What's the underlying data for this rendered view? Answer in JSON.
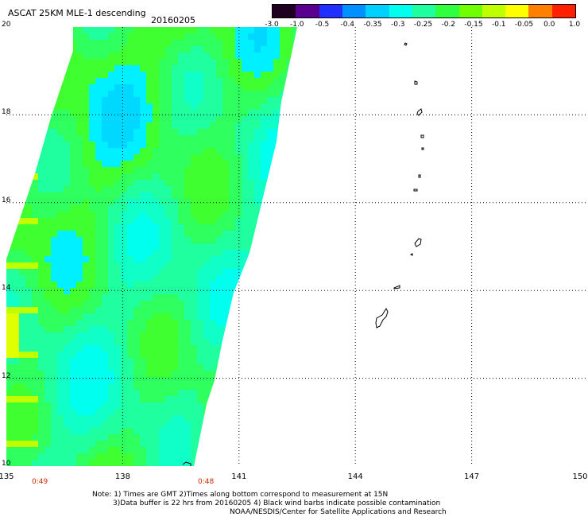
{
  "header": {
    "title": "ASCAT 25KM MLE-1 descending",
    "date": "20160205"
  },
  "colorbar": {
    "labels": [
      "-3.0",
      "-1.0",
      "-0.5",
      "-0.4",
      "-0.35",
      "-0.3",
      "-0.25",
      "-0.2",
      "-0.15",
      "-0.1",
      "-0.05",
      "0.0",
      "1.0"
    ],
    "colors": [
      "#200020",
      "#5a0090",
      "#2030ff",
      "#0090ff",
      "#00d0ff",
      "#00ffee",
      "#20ffa0",
      "#30ff40",
      "#70ff00",
      "#c0ff00",
      "#ffff00",
      "#ff8000",
      "#ff2000"
    ]
  },
  "axes": {
    "lat_labels": [
      "20",
      "18",
      "16",
      "14",
      "12",
      "10"
    ],
    "lon_labels": [
      "135",
      "138",
      "141",
      "144",
      "147",
      "150"
    ]
  },
  "times": {
    "left": "0:49",
    "right": "0:48"
  },
  "notes": {
    "line1": "Note: 1) Times are GMT 2)Times along bottom correspond to measurement at 15N",
    "line2": "3)Data buffer is 22 hrs from 20160205 4) Black wind barbs indicate possible contamination",
    "line3": "NOAA/NESDIS/Center for Satellite Applications and Research"
  }
}
